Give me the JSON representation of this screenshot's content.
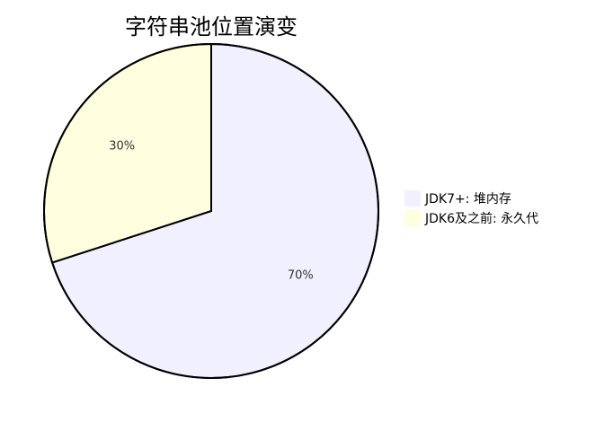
{
  "chart_data": {
    "type": "pie",
    "title": "字符串池位置演变",
    "categories": [
      "JDK7+: 堆内存",
      "JDK6及之前: 永久代"
    ],
    "values": [
      70,
      30
    ],
    "value_labels": [
      "70%",
      "30%"
    ],
    "colors": [
      "#f0f0ff",
      "#ffffe0"
    ],
    "stroke_color": "#000000",
    "legend_position": "right"
  }
}
